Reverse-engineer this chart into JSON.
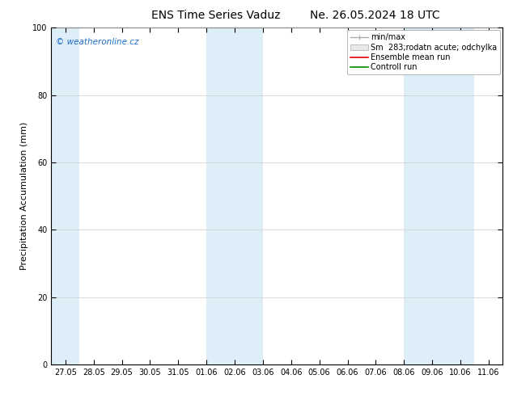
{
  "title": "ENS Time Series Vaduz",
  "title2": "Ne. 26.05.2024 18 UTC",
  "ylabel": "Precipitation Accumulation (mm)",
  "ylim": [
    0,
    100
  ],
  "yticks": [
    0,
    20,
    40,
    60,
    80,
    100
  ],
  "x_labels": [
    "27.05",
    "28.05",
    "29.05",
    "30.05",
    "31.05",
    "01.06",
    "02.06",
    "03.06",
    "04.06",
    "05.06",
    "06.06",
    "07.06",
    "08.06",
    "09.06",
    "10.06",
    "11.06"
  ],
  "blue_shade_ranges": [
    [
      -0.5,
      0.5
    ],
    [
      5.0,
      7.0
    ],
    [
      12.0,
      14.5
    ]
  ],
  "shade_color": "#ddeef8",
  "background_color": "#ffffff",
  "legend_labels": [
    "min/max",
    "Sm  283;rodatn acute; odchylka",
    "Ensemble mean run",
    "Controll run"
  ],
  "legend_line_colors": [
    "#aaaaaa",
    "#cccccc",
    "#dd0000",
    "#008800"
  ],
  "watermark_text": "© weatheronline.cz",
  "watermark_color": "#1a6ecc",
  "title_fontsize": 10,
  "ylabel_fontsize": 8,
  "tick_fontsize": 7,
  "legend_fontsize": 7
}
